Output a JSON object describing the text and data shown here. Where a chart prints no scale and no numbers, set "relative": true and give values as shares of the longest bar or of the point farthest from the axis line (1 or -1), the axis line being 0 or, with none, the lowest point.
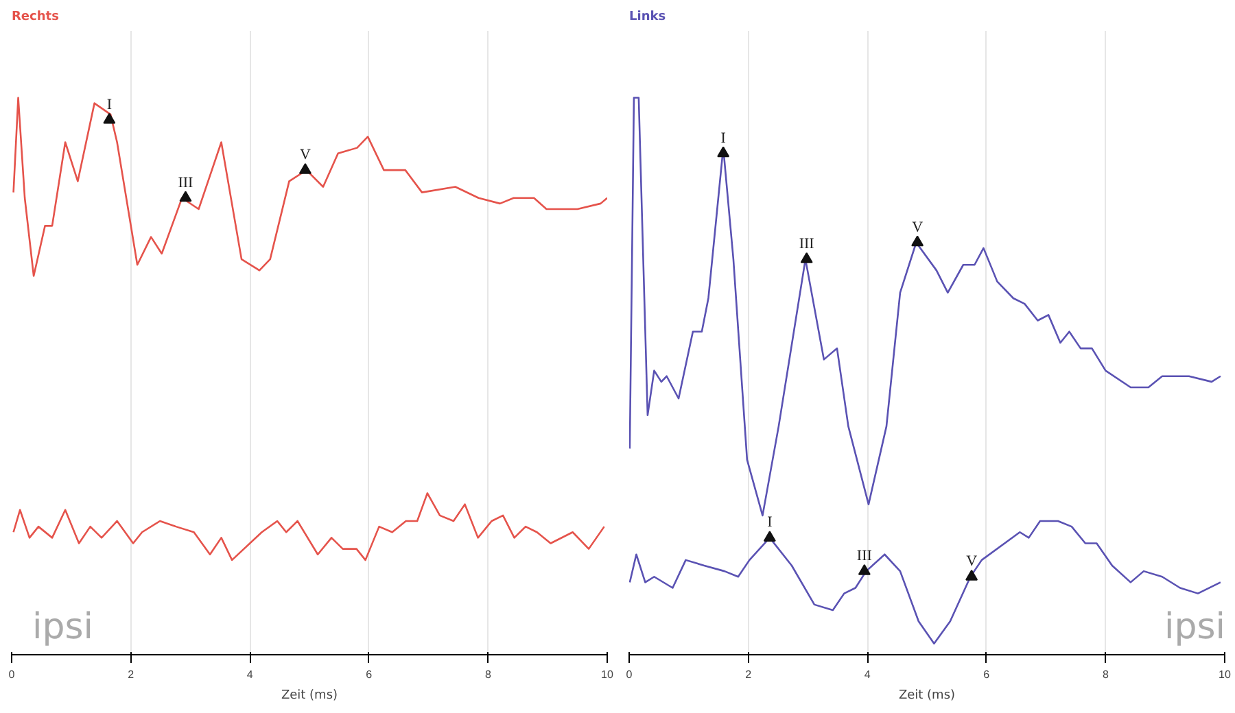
{
  "chart_data": [
    {
      "type": "line",
      "title": "Rechts",
      "xlabel": "Zeit (ms)",
      "relative": true,
      "grid": "x",
      "marker": "none",
      "line_style": "solid",
      "xlim": [
        0,
        10
      ],
      "xticks": [
        0,
        2,
        4,
        6,
        8,
        10
      ],
      "series": [
        {
          "color": "#e5534b",
          "x": [
            0.03,
            0.11,
            0.22,
            0.37,
            0.56,
            0.68,
            0.9,
            1.11,
            1.39,
            1.66,
            1.77,
            2.11,
            2.34,
            2.52,
            2.86,
            3.14,
            3.52,
            3.86,
            4.16,
            4.34,
            4.66,
            4.95,
            5.23,
            5.48,
            5.8,
            5.98,
            6.25,
            6.61,
            6.89,
            7.45,
            7.84,
            8.2,
            8.43,
            8.77,
            8.98,
            9.5,
            9.89,
            10.0
          ],
          "values": [
            0.83,
            1.0,
            0.82,
            0.68,
            0.77,
            0.77,
            0.92,
            0.85,
            0.99,
            0.97,
            0.92,
            0.7,
            0.75,
            0.72,
            0.82,
            0.8,
            0.92,
            0.71,
            0.69,
            0.71,
            0.85,
            0.87,
            0.84,
            0.9,
            0.91,
            0.93,
            0.87,
            0.87,
            0.83,
            0.84,
            0.82,
            0.81,
            0.82,
            0.82,
            0.8,
            0.8,
            0.81,
            0.82
          ]
        },
        {
          "color": "#e5534b",
          "x": [
            0.03,
            0.14,
            0.3,
            0.45,
            0.68,
            0.9,
            1.13,
            1.32,
            1.51,
            1.77,
            2.04,
            2.19,
            2.49,
            2.76,
            3.06,
            3.33,
            3.52,
            3.7,
            4.2,
            4.46,
            4.61,
            4.8,
            5.14,
            5.37,
            5.56,
            5.79,
            5.94,
            6.17,
            6.39,
            6.62,
            6.81,
            6.98,
            7.19,
            7.42,
            7.61,
            7.83,
            8.06,
            8.25,
            8.44,
            8.63,
            8.82,
            9.05,
            9.42,
            9.69,
            9.95
          ],
          "values": [
            0.22,
            0.26,
            0.21,
            0.23,
            0.21,
            0.26,
            0.2,
            0.23,
            0.21,
            0.24,
            0.2,
            0.22,
            0.24,
            0.23,
            0.22,
            0.18,
            0.21,
            0.17,
            0.22,
            0.24,
            0.22,
            0.24,
            0.18,
            0.21,
            0.19,
            0.19,
            0.17,
            0.23,
            0.22,
            0.24,
            0.24,
            0.29,
            0.25,
            0.24,
            0.27,
            0.21,
            0.24,
            0.25,
            0.21,
            0.23,
            0.22,
            0.2,
            0.22,
            0.19,
            0.23
          ]
        }
      ],
      "annotations": [
        {
          "text": "I",
          "x": 1.64,
          "y": 0.96
        },
        {
          "text": "III",
          "x": 2.92,
          "y": 0.82
        },
        {
          "text": "V",
          "x": 4.93,
          "y": 0.87
        },
        "ipsi"
      ]
    },
    {
      "type": "line",
      "title": "Links",
      "xlabel": "Zeit (ms)",
      "relative": true,
      "grid": "x",
      "marker": "none",
      "line_style": "solid",
      "xlim": [
        0,
        10
      ],
      "xticks": [
        0,
        2,
        4,
        6,
        8,
        10
      ],
      "series": [
        {
          "color": "#5a52b3",
          "x": [
            0.01,
            0.08,
            0.16,
            0.31,
            0.42,
            0.54,
            0.63,
            0.83,
            1.07,
            1.22,
            1.33,
            1.58,
            1.75,
            1.98,
            2.24,
            2.51,
            2.96,
            3.27,
            3.49,
            3.68,
            4.02,
            4.32,
            4.55,
            4.82,
            5.16,
            5.35,
            5.61,
            5.8,
            5.95,
            6.18,
            6.45,
            6.64,
            6.86,
            7.04,
            7.24,
            7.39,
            7.58,
            7.77,
            8.0,
            8.42,
            8.72,
            8.95,
            9.4,
            9.78,
            9.93
          ],
          "values": [
            0.37,
            1.0,
            1.0,
            0.43,
            0.51,
            0.49,
            0.5,
            0.46,
            0.58,
            0.58,
            0.64,
            0.91,
            0.71,
            0.35,
            0.25,
            0.41,
            0.71,
            0.53,
            0.55,
            0.41,
            0.27,
            0.41,
            0.65,
            0.74,
            0.69,
            0.65,
            0.7,
            0.7,
            0.73,
            0.67,
            0.64,
            0.63,
            0.6,
            0.61,
            0.56,
            0.58,
            0.55,
            0.55,
            0.51,
            0.48,
            0.48,
            0.5,
            0.5,
            0.49,
            0.5
          ]
        },
        {
          "color": "#5a52b3",
          "x": [
            0.01,
            0.12,
            0.27,
            0.42,
            0.73,
            0.95,
            1.26,
            1.6,
            1.83,
            2.02,
            2.36,
            2.73,
            3.11,
            3.42,
            3.61,
            3.8,
            3.98,
            4.29,
            4.55,
            4.86,
            5.12,
            5.39,
            5.73,
            5.92,
            6.56,
            6.71,
            6.9,
            7.2,
            7.43,
            7.66,
            7.85,
            8.11,
            8.42,
            8.64,
            8.95,
            9.25,
            9.55,
            9.93
          ],
          "values": [
            0.13,
            0.18,
            0.13,
            0.14,
            0.12,
            0.17,
            0.16,
            0.15,
            0.14,
            0.17,
            0.21,
            0.16,
            0.09,
            0.08,
            0.11,
            0.12,
            0.15,
            0.18,
            0.15,
            0.06,
            0.02,
            0.06,
            0.14,
            0.17,
            0.22,
            0.21,
            0.24,
            0.24,
            0.23,
            0.2,
            0.2,
            0.16,
            0.13,
            0.15,
            0.14,
            0.12,
            0.11,
            0.13
          ]
        }
      ],
      "annotations": [
        {
          "text": "I",
          "x": 1.58,
          "y": 0.9
        },
        {
          "text": "III",
          "x": 2.98,
          "y": 0.71
        },
        {
          "text": "V",
          "x": 4.84,
          "y": 0.74
        },
        {
          "text": "I",
          "x": 2.36,
          "y": 0.21
        },
        {
          "text": "III",
          "x": 3.95,
          "y": 0.15
        },
        {
          "text": "V",
          "x": 5.75,
          "y": 0.14
        },
        "ipsi"
      ]
    }
  ]
}
